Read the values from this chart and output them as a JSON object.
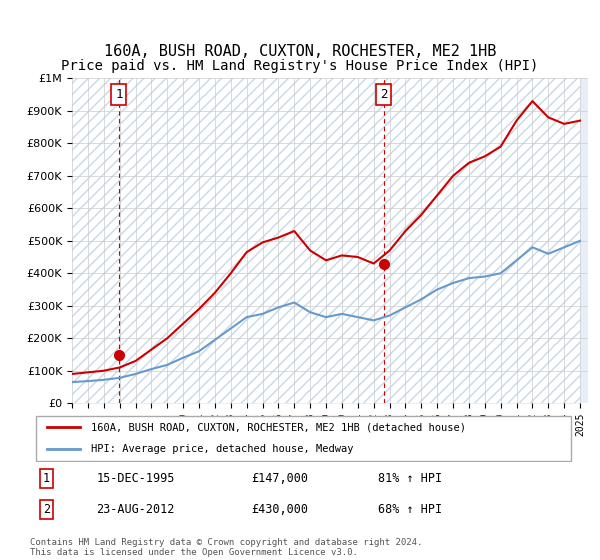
{
  "title1": "160A, BUSH ROAD, CUXTON, ROCHESTER, ME2 1HB",
  "title2": "Price paid vs. HM Land Registry's House Price Index (HPI)",
  "legend_line1": "160A, BUSH ROAD, CUXTON, ROCHESTER, ME2 1HB (detached house)",
  "legend_line2": "HPI: Average price, detached house, Medway",
  "sale1_label": "1",
  "sale1_date": "15-DEC-1995",
  "sale1_price": 147000,
  "sale1_hpi": "81% ↑ HPI",
  "sale2_label": "2",
  "sale2_date": "23-AUG-2012",
  "sale2_price": 430000,
  "sale2_hpi": "68% ↑ HPI",
  "footer": "Contains HM Land Registry data © Crown copyright and database right 2024.\nThis data is licensed under the Open Government Licence v3.0.",
  "price_color": "#cc0000",
  "hpi_color": "#6699cc",
  "sale_dot_color": "#cc0000",
  "annotation_box_color": "#cc0000",
  "bg_hatch_color": "#e8eef8",
  "grid_color": "#cccccc",
  "ylim_max": 1000000,
  "ylim_min": 0,
  "xlabel_fontsize": 7,
  "ylabel_fontsize": 8,
  "title_fontsize1": 11,
  "title_fontsize2": 10,
  "hpi_years": [
    1993,
    1994,
    1995,
    1996,
    1997,
    1998,
    1999,
    2000,
    2001,
    2002,
    2003,
    2004,
    2005,
    2006,
    2007,
    2008,
    2009,
    2010,
    2011,
    2012,
    2013,
    2014,
    2015,
    2016,
    2017,
    2018,
    2019,
    2020,
    2021,
    2022,
    2023,
    2024,
    2025
  ],
  "hpi_values": [
    65000,
    68000,
    72000,
    78000,
    90000,
    105000,
    118000,
    140000,
    160000,
    195000,
    230000,
    265000,
    275000,
    295000,
    310000,
    280000,
    265000,
    275000,
    265000,
    255000,
    270000,
    295000,
    320000,
    350000,
    370000,
    385000,
    390000,
    400000,
    440000,
    480000,
    460000,
    480000,
    500000
  ],
  "price_years": [
    1993,
    1994,
    1995,
    1996,
    1997,
    1998,
    1999,
    2000,
    2001,
    2002,
    2003,
    2004,
    2005,
    2006,
    2007,
    2008,
    2009,
    2010,
    2011,
    2012,
    2013,
    2014,
    2015,
    2016,
    2017,
    2018,
    2019,
    2020,
    2021,
    2022,
    2023,
    2024,
    2025
  ],
  "price_values": [
    90000,
    95000,
    100000,
    110000,
    130000,
    165000,
    200000,
    245000,
    290000,
    340000,
    400000,
    465000,
    495000,
    510000,
    530000,
    470000,
    440000,
    455000,
    450000,
    430000,
    470000,
    530000,
    580000,
    640000,
    700000,
    740000,
    760000,
    790000,
    870000,
    930000,
    880000,
    860000,
    870000
  ]
}
